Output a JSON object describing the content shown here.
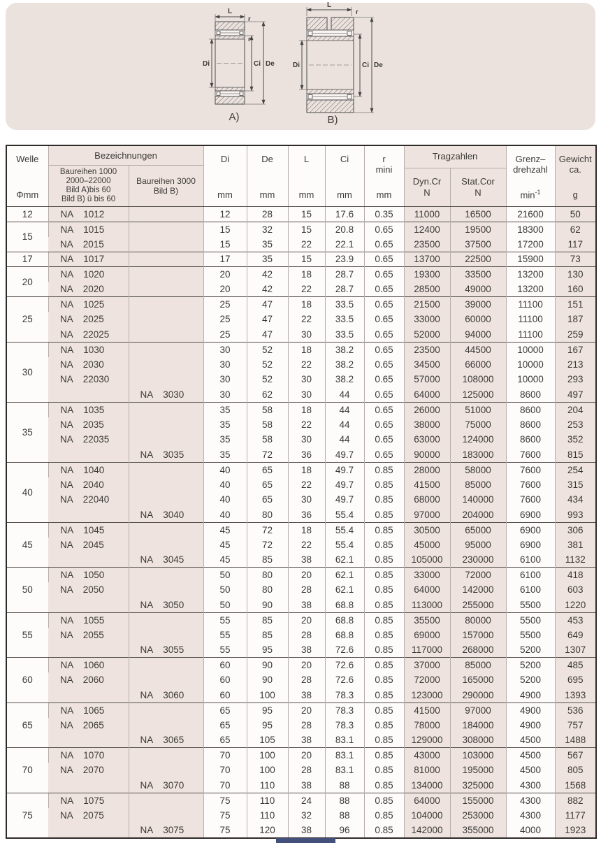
{
  "diagram": {
    "l": "L",
    "r": "r",
    "di": "Di",
    "ci": "Ci",
    "de": "De",
    "caption_a": "A)",
    "caption_b": "B)"
  },
  "table": {
    "designation_prefix": "NA",
    "header": {
      "welle_line1": "Welle",
      "welle_line2": "Φmm",
      "bezeichnungen": "Bezeichnungen",
      "baureihe1": [
        "Baureihen 1000",
        "2000–22000",
        "Bild A)bis 60",
        "Bild B) ü bis 60"
      ],
      "baureihe2": [
        "Baureihen 3000",
        "Bild B)"
      ],
      "di": "Di",
      "de": "De",
      "l": "L",
      "ci": "Ci",
      "r_line1": "r",
      "r_line2": "mini",
      "mm": "mm",
      "tragzahlen": "Tragzahlen",
      "dyn_line1": "Dyn.Cr",
      "dyn_line2": "N",
      "stat_line1": "Stat.Cor",
      "stat_line2": "N",
      "grenz_line1": "Grenz–",
      "grenz_line2": "drehzahl",
      "grenz_unit_base": "min",
      "grenz_unit_exp": "-1",
      "gewicht_line1": "Gewicht",
      "gewicht_line2": "ca.",
      "gewicht_unit": "g"
    },
    "groups": [
      {
        "welle": "12",
        "rows": [
          {
            "b1": "1012",
            "b2": null,
            "di": "12",
            "de": "28",
            "l": "15",
            "ci": "17.6",
            "r": "0.35",
            "dyn": "11000",
            "stat": "16500",
            "grenz": "21600",
            "gew": "50"
          }
        ]
      },
      {
        "welle": "15",
        "rows": [
          {
            "b1": "1015",
            "b2": null,
            "di": "15",
            "de": "32",
            "l": "15",
            "ci": "20.8",
            "r": "0.65",
            "dyn": "12400",
            "stat": "19500",
            "grenz": "18300",
            "gew": "62"
          },
          {
            "b1": "2015",
            "b2": null,
            "di": "15",
            "de": "35",
            "l": "22",
            "ci": "22.1",
            "r": "0.65",
            "dyn": "23500",
            "stat": "37500",
            "grenz": "17200",
            "gew": "117"
          }
        ]
      },
      {
        "welle": "17",
        "rows": [
          {
            "b1": "1017",
            "b2": null,
            "di": "17",
            "de": "35",
            "l": "15",
            "ci": "23.9",
            "r": "0.65",
            "dyn": "13700",
            "stat": "22500",
            "grenz": "15900",
            "gew": "73"
          }
        ]
      },
      {
        "welle": "20",
        "rows": [
          {
            "b1": "1020",
            "b2": null,
            "di": "20",
            "de": "42",
            "l": "18",
            "ci": "28.7",
            "r": "0.65",
            "dyn": "19300",
            "stat": "33500",
            "grenz": "13200",
            "gew": "130"
          },
          {
            "b1": "2020",
            "b2": null,
            "di": "20",
            "de": "42",
            "l": "22",
            "ci": "28.7",
            "r": "0.65",
            "dyn": "28500",
            "stat": "49000",
            "grenz": "13200",
            "gew": "160"
          }
        ]
      },
      {
        "welle": "25",
        "rows": [
          {
            "b1": "1025",
            "b2": null,
            "di": "25",
            "de": "47",
            "l": "18",
            "ci": "33.5",
            "r": "0.65",
            "dyn": "21500",
            "stat": "39000",
            "grenz": "11100",
            "gew": "151"
          },
          {
            "b1": "2025",
            "b2": null,
            "di": "25",
            "de": "47",
            "l": "22",
            "ci": "33.5",
            "r": "0.65",
            "dyn": "33000",
            "stat": "60000",
            "grenz": "11100",
            "gew": "187"
          },
          {
            "b1": "22025",
            "b2": null,
            "di": "25",
            "de": "47",
            "l": "30",
            "ci": "33.5",
            "r": "0.65",
            "dyn": "52000",
            "stat": "94000",
            "grenz": "11100",
            "gew": "259"
          }
        ]
      },
      {
        "welle": "30",
        "rows": [
          {
            "b1": "1030",
            "b2": null,
            "di": "30",
            "de": "52",
            "l": "18",
            "ci": "38.2",
            "r": "0.65",
            "dyn": "23500",
            "stat": "44500",
            "grenz": "10000",
            "gew": "167"
          },
          {
            "b1": "2030",
            "b2": null,
            "di": "30",
            "de": "52",
            "l": "22",
            "ci": "38.2",
            "r": "0.65",
            "dyn": "34500",
            "stat": "66000",
            "grenz": "10000",
            "gew": "213"
          },
          {
            "b1": "22030",
            "b2": null,
            "di": "30",
            "de": "52",
            "l": "30",
            "ci": "38.2",
            "r": "0.65",
            "dyn": "57000",
            "stat": "108000",
            "grenz": "10000",
            "gew": "293"
          },
          {
            "b1": null,
            "b2": "3030",
            "di": "30",
            "de": "62",
            "l": "30",
            "ci": "44",
            "r": "0.65",
            "dyn": "64000",
            "stat": "125000",
            "grenz": "8600",
            "gew": "497"
          }
        ]
      },
      {
        "welle": "35",
        "rows": [
          {
            "b1": "1035",
            "b2": null,
            "di": "35",
            "de": "58",
            "l": "18",
            "ci": "44",
            "r": "0.65",
            "dyn": "26000",
            "stat": "51000",
            "grenz": "8600",
            "gew": "204"
          },
          {
            "b1": "2035",
            "b2": null,
            "di": "35",
            "de": "58",
            "l": "22",
            "ci": "44",
            "r": "0.65",
            "dyn": "38000",
            "stat": "75000",
            "grenz": "8600",
            "gew": "253"
          },
          {
            "b1": "22035",
            "b2": null,
            "di": "35",
            "de": "58",
            "l": "30",
            "ci": "44",
            "r": "0.65",
            "dyn": "63000",
            "stat": "124000",
            "grenz": "8600",
            "gew": "352"
          },
          {
            "b1": null,
            "b2": "3035",
            "di": "35",
            "de": "72",
            "l": "36",
            "ci": "49.7",
            "r": "0.65",
            "dyn": "90000",
            "stat": "183000",
            "grenz": "7600",
            "gew": "815"
          }
        ]
      },
      {
        "welle": "40",
        "rows": [
          {
            "b1": "1040",
            "b2": null,
            "di": "40",
            "de": "65",
            "l": "18",
            "ci": "49.7",
            "r": "0.85",
            "dyn": "28000",
            "stat": "58000",
            "grenz": "7600",
            "gew": "254"
          },
          {
            "b1": "2040",
            "b2": null,
            "di": "40",
            "de": "65",
            "l": "22",
            "ci": "49.7",
            "r": "0.85",
            "dyn": "41500",
            "stat": "85000",
            "grenz": "7600",
            "gew": "315"
          },
          {
            "b1": "22040",
            "b2": null,
            "di": "40",
            "de": "65",
            "l": "30",
            "ci": "49.7",
            "r": "0.85",
            "dyn": "68000",
            "stat": "140000",
            "grenz": "7600",
            "gew": "434"
          },
          {
            "b1": null,
            "b2": "3040",
            "di": "40",
            "de": "80",
            "l": "36",
            "ci": "55.4",
            "r": "0.85",
            "dyn": "97000",
            "stat": "204000",
            "grenz": "6900",
            "gew": "993"
          }
        ]
      },
      {
        "welle": "45",
        "rows": [
          {
            "b1": "1045",
            "b2": null,
            "di": "45",
            "de": "72",
            "l": "18",
            "ci": "55.4",
            "r": "0.85",
            "dyn": "30500",
            "stat": "65000",
            "grenz": "6900",
            "gew": "306"
          },
          {
            "b1": "2045",
            "b2": null,
            "di": "45",
            "de": "72",
            "l": "22",
            "ci": "55.4",
            "r": "0.85",
            "dyn": "45000",
            "stat": "95000",
            "grenz": "6900",
            "gew": "381"
          },
          {
            "b1": null,
            "b2": "3045",
            "di": "45",
            "de": "85",
            "l": "38",
            "ci": "62.1",
            "r": "0.85",
            "dyn": "105000",
            "stat": "230000",
            "grenz": "6100",
            "gew": "1132"
          }
        ]
      },
      {
        "welle": "50",
        "rows": [
          {
            "b1": "1050",
            "b2": null,
            "di": "50",
            "de": "80",
            "l": "20",
            "ci": "62.1",
            "r": "0.85",
            "dyn": "33000",
            "stat": "72000",
            "grenz": "6100",
            "gew": "418"
          },
          {
            "b1": "2050",
            "b2": null,
            "di": "50",
            "de": "80",
            "l": "28",
            "ci": "62.1",
            "r": "0.85",
            "dyn": "64000",
            "stat": "142000",
            "grenz": "6100",
            "gew": "603"
          },
          {
            "b1": null,
            "b2": "3050",
            "di": "50",
            "de": "90",
            "l": "38",
            "ci": "68.8",
            "r": "0.85",
            "dyn": "113000",
            "stat": "255000",
            "grenz": "5500",
            "gew": "1220"
          }
        ]
      },
      {
        "welle": "55",
        "rows": [
          {
            "b1": "1055",
            "b2": null,
            "di": "55",
            "de": "85",
            "l": "20",
            "ci": "68.8",
            "r": "0.85",
            "dyn": "35500",
            "stat": "80000",
            "grenz": "5500",
            "gew": "453"
          },
          {
            "b1": "2055",
            "b2": null,
            "di": "55",
            "de": "85",
            "l": "28",
            "ci": "68.8",
            "r": "0.85",
            "dyn": "69000",
            "stat": "157000",
            "grenz": "5500",
            "gew": "649"
          },
          {
            "b1": null,
            "b2": "3055",
            "di": "55",
            "de": "95",
            "l": "38",
            "ci": "72.6",
            "r": "0.85",
            "dyn": "117000",
            "stat": "268000",
            "grenz": "5200",
            "gew": "1307"
          }
        ]
      },
      {
        "welle": "60",
        "rows": [
          {
            "b1": "1060",
            "b2": null,
            "di": "60",
            "de": "90",
            "l": "20",
            "ci": "72.6",
            "r": "0.85",
            "dyn": "37000",
            "stat": "85000",
            "grenz": "5200",
            "gew": "485"
          },
          {
            "b1": "2060",
            "b2": null,
            "di": "60",
            "de": "90",
            "l": "28",
            "ci": "72.6",
            "r": "0.85",
            "dyn": "72000",
            "stat": "165000",
            "grenz": "5200",
            "gew": "695"
          },
          {
            "b1": null,
            "b2": "3060",
            "di": "60",
            "de": "100",
            "l": "38",
            "ci": "78.3",
            "r": "0.85",
            "dyn": "123000",
            "stat": "290000",
            "grenz": "4900",
            "gew": "1393"
          }
        ]
      },
      {
        "welle": "65",
        "rows": [
          {
            "b1": "1065",
            "b2": null,
            "di": "65",
            "de": "95",
            "l": "20",
            "ci": "78.3",
            "r": "0.85",
            "dyn": "41500",
            "stat": "97000",
            "grenz": "4900",
            "gew": "536"
          },
          {
            "b1": "2065",
            "b2": null,
            "di": "65",
            "de": "95",
            "l": "28",
            "ci": "78.3",
            "r": "0.85",
            "dyn": "78000",
            "stat": "184000",
            "grenz": "4900",
            "gew": "757"
          },
          {
            "b1": null,
            "b2": "3065",
            "di": "65",
            "de": "105",
            "l": "38",
            "ci": "83.1",
            "r": "0.85",
            "dyn": "129000",
            "stat": "308000",
            "grenz": "4500",
            "gew": "1488"
          }
        ]
      },
      {
        "welle": "70",
        "rows": [
          {
            "b1": "1070",
            "b2": null,
            "di": "70",
            "de": "100",
            "l": "20",
            "ci": "83.1",
            "r": "0.85",
            "dyn": "43000",
            "stat": "103000",
            "grenz": "4500",
            "gew": "567"
          },
          {
            "b1": "2070",
            "b2": null,
            "di": "70",
            "de": "100",
            "l": "28",
            "ci": "83.1",
            "r": "0.85",
            "dyn": "81000",
            "stat": "195000",
            "grenz": "4500",
            "gew": "805"
          },
          {
            "b1": null,
            "b2": "3070",
            "di": "70",
            "de": "110",
            "l": "38",
            "ci": "88",
            "r": "0.85",
            "dyn": "134000",
            "stat": "325000",
            "grenz": "4300",
            "gew": "1568"
          }
        ]
      },
      {
        "welle": "75",
        "rows": [
          {
            "b1": "1075",
            "b2": null,
            "di": "75",
            "de": "110",
            "l": "24",
            "ci": "88",
            "r": "0.85",
            "dyn": "64000",
            "stat": "155000",
            "grenz": "4300",
            "gew": "882"
          },
          {
            "b1": "2075",
            "b2": null,
            "di": "75",
            "de": "110",
            "l": "32",
            "ci": "88",
            "r": "0.85",
            "dyn": "104000",
            "stat": "253000",
            "grenz": "4300",
            "gew": "1177"
          },
          {
            "b1": null,
            "b2": "3075",
            "di": "75",
            "de": "120",
            "l": "38",
            "ci": "96",
            "r": "0.85",
            "dyn": "142000",
            "stat": "355000",
            "grenz": "4000",
            "gew": "1923"
          }
        ]
      }
    ]
  }
}
